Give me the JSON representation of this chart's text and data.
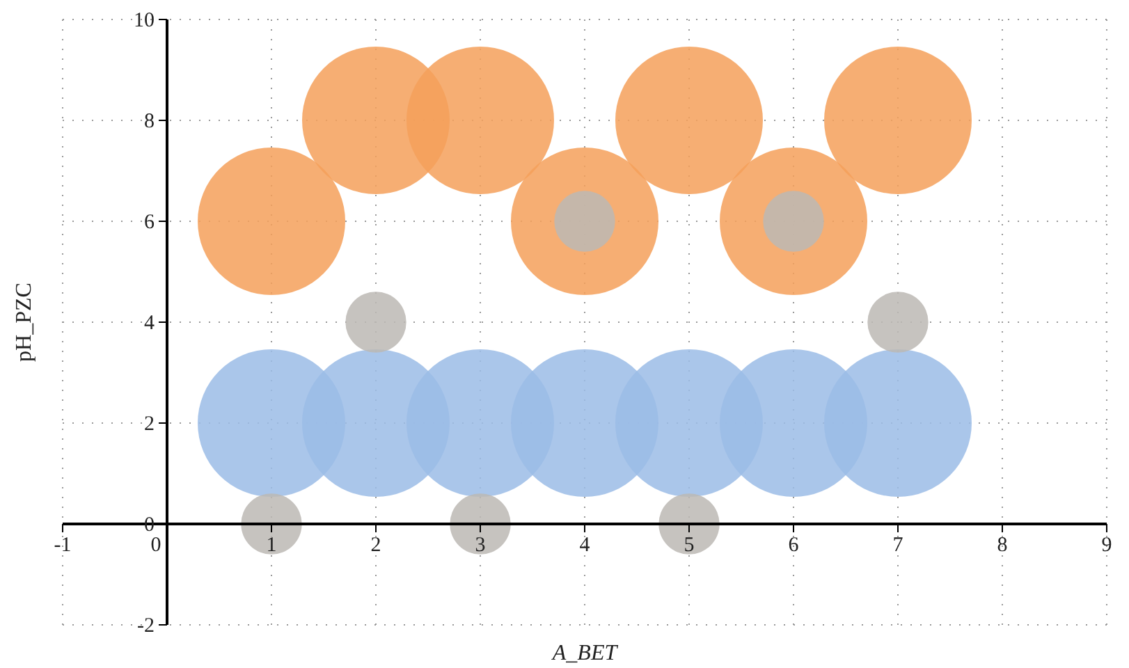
{
  "chart_data": {
    "type": "bubble",
    "xlabel": "A_BET",
    "ylabel": "pH_PZC",
    "xlim": [
      -1,
      9
    ],
    "xticks": [
      -1,
      0,
      1,
      2,
      3,
      4,
      5,
      6,
      7,
      8,
      9
    ],
    "ylim": [
      -2,
      10
    ],
    "yticks": [
      -2,
      0,
      2,
      4,
      6,
      8,
      10
    ],
    "grid": true,
    "series": [
      {
        "color": "#f5a05a",
        "x": [
          1,
          2,
          3,
          4,
          5,
          6,
          7
        ],
        "values": [
          6,
          8,
          8,
          6,
          8,
          6,
          8
        ],
        "sizes": [
          1,
          1,
          1,
          1,
          1,
          1,
          1
        ]
      },
      {
        "color": "#9bbce6",
        "x": [
          1,
          2,
          3,
          4,
          5,
          6,
          7
        ],
        "values": [
          2,
          2,
          2,
          2,
          2,
          2,
          2
        ],
        "sizes": [
          1,
          1,
          1,
          1,
          1,
          1,
          1
        ]
      },
      {
        "color": "#bcb8b4",
        "x": [
          1,
          2,
          3,
          4,
          5,
          6,
          7
        ],
        "values": [
          0,
          4,
          0,
          6,
          0,
          6,
          4
        ],
        "sizes": [
          0.17,
          0.17,
          0.17,
          0.17,
          0.17,
          0.17,
          0.17
        ]
      }
    ]
  }
}
